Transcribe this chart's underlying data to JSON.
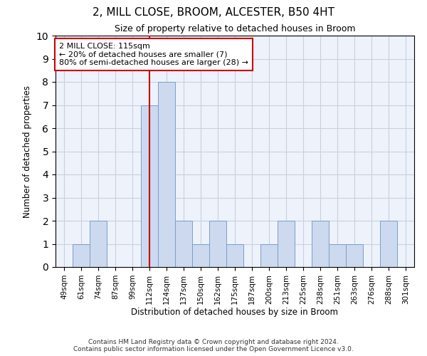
{
  "title1": "2, MILL CLOSE, BROOM, ALCESTER, B50 4HT",
  "title2": "Size of property relative to detached houses in Broom",
  "xlabel": "Distribution of detached houses by size in Broom",
  "ylabel": "Number of detached properties",
  "categories": [
    "49sqm",
    "61sqm",
    "74sqm",
    "87sqm",
    "99sqm",
    "112sqm",
    "124sqm",
    "137sqm",
    "150sqm",
    "162sqm",
    "175sqm",
    "187sqm",
    "200sqm",
    "213sqm",
    "225sqm",
    "238sqm",
    "251sqm",
    "263sqm",
    "276sqm",
    "288sqm",
    "301sqm"
  ],
  "values": [
    0,
    1,
    2,
    0,
    0,
    7,
    8,
    2,
    1,
    2,
    1,
    0,
    1,
    2,
    0,
    2,
    1,
    1,
    0,
    2,
    0
  ],
  "bar_color": "#ccd9ee",
  "bar_edge_color": "#7b9fc7",
  "vline_index": 5,
  "vline_color": "#cc0000",
  "annotation_line1": "2 MILL CLOSE: 115sqm",
  "annotation_line2": "← 20% of detached houses are smaller (7)",
  "annotation_line3": "80% of semi-detached houses are larger (28) →",
  "annotation_box_color": "#ffffff",
  "annotation_box_edge_color": "#cc0000",
  "ylim": [
    0,
    10
  ],
  "yticks": [
    0,
    1,
    2,
    3,
    4,
    5,
    6,
    7,
    8,
    9,
    10
  ],
  "grid_color": "#c8d0e0",
  "background_color": "#eef2fb",
  "footer1": "Contains HM Land Registry data © Crown copyright and database right 2024.",
  "footer2": "Contains public sector information licensed under the Open Government Licence v3.0."
}
